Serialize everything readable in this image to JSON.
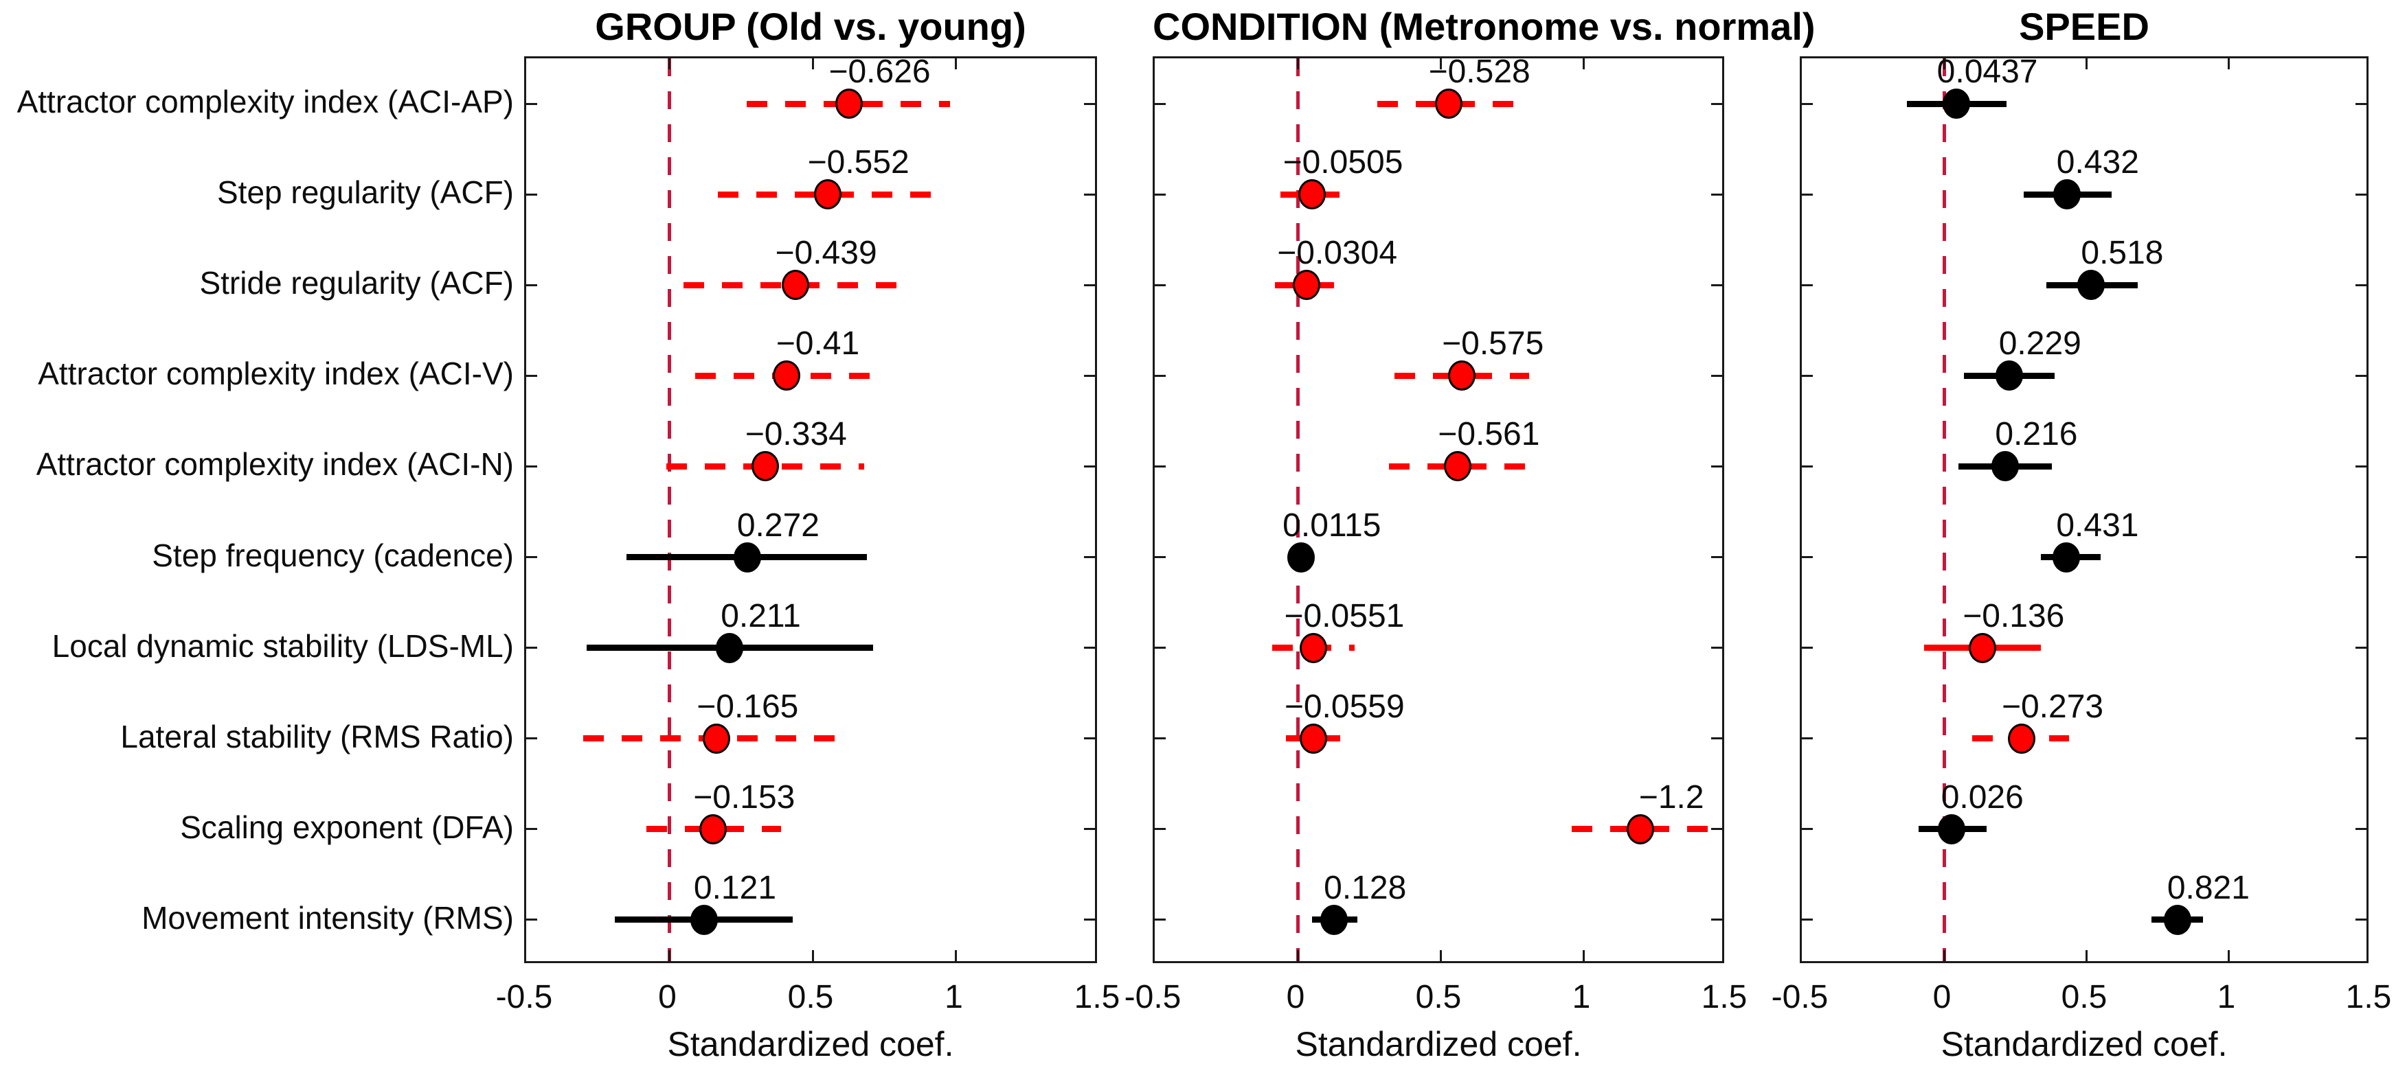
{
  "figure_title": "Standardized coefficients forest plots",
  "chart_data": {
    "type": "scatter",
    "subtype": "forest-dot-plot",
    "categories": [
      "Attractor complexity index (ACI-AP)",
      "Step regularity (ACF)",
      "Stride regularity (ACF)",
      "Attractor complexity index (ACI-V)",
      "Attractor complexity index (ACI-N)",
      "Step frequency (cadence)",
      "Local dynamic stability (LDS-ML)",
      "Lateral stability (RMS Ratio)",
      "Scaling exponent (DFA)",
      "Movement intensity (RMS)"
    ],
    "xlabel": "Standardized coef.",
    "xlim": [
      -0.5,
      1.5
    ],
    "xticks": [
      {
        "value": -0.5,
        "label": "-0.5"
      },
      {
        "value": 0,
        "label": "0"
      },
      {
        "value": 0.5,
        "label": "0.5"
      },
      {
        "value": 1,
        "label": "1"
      },
      {
        "value": 1.5,
        "label": "1.5"
      }
    ],
    "inner_xticks": [
      0,
      0.5,
      1
    ],
    "zero_reference_line": 0,
    "legend": "none",
    "grid": "off",
    "colors": {
      "red": "#ff0000",
      "black": "#000000",
      "zero_line": "#c5183c",
      "axis": "#1a1a1a",
      "text": "#0d0d0d"
    },
    "panels": [
      {
        "title": "GROUP (Old vs. young)",
        "points": [
          {
            "label": "−0.626",
            "x": 0.626,
            "ci": [
              0.27,
              0.98
            ],
            "line": "dashed",
            "color": "red"
          },
          {
            "label": "−0.552",
            "x": 0.552,
            "ci": [
              0.17,
              0.94
            ],
            "line": "dashed",
            "color": "red"
          },
          {
            "label": "−0.439",
            "x": 0.439,
            "ci": [
              0.05,
              0.83
            ],
            "line": "dashed",
            "color": "red"
          },
          {
            "label": "−0.41",
            "x": 0.41,
            "ci": [
              0.09,
              0.73
            ],
            "line": "dashed",
            "color": "red"
          },
          {
            "label": "−0.334",
            "x": 0.334,
            "ci": [
              -0.01,
              0.68
            ],
            "line": "dashed",
            "color": "red"
          },
          {
            "label": "0.272",
            "x": 0.272,
            "ci": [
              -0.15,
              0.69
            ],
            "line": "solid",
            "color": "black"
          },
          {
            "label": "0.211",
            "x": 0.211,
            "ci": [
              -0.29,
              0.71
            ],
            "line": "solid",
            "color": "black"
          },
          {
            "label": "−0.165",
            "x": 0.165,
            "ci": [
              -0.3,
              0.59
            ],
            "line": "dashed",
            "color": "red"
          },
          {
            "label": "−0.153",
            "x": 0.153,
            "ci": [
              -0.08,
              0.39
            ],
            "line": "dashed",
            "color": "red"
          },
          {
            "label": "0.121",
            "x": 0.121,
            "ci": [
              -0.19,
              0.43
            ],
            "line": "solid",
            "color": "black"
          }
        ]
      },
      {
        "title": "CONDITION (Metronome vs. normal)",
        "points": [
          {
            "label": "−0.528",
            "x": 0.528,
            "ci": [
              0.28,
              0.79
            ],
            "line": "dashed",
            "color": "red"
          },
          {
            "label": "−0.0505",
            "x": 0.0505,
            "ci": [
              -0.06,
              0.16
            ],
            "line": "dashed",
            "color": "red"
          },
          {
            "label": "−0.0304",
            "x": 0.0304,
            "ci": [
              -0.08,
              0.14
            ],
            "line": "dashed",
            "color": "red"
          },
          {
            "label": "−0.575",
            "x": 0.575,
            "ci": [
              0.34,
              0.81
            ],
            "line": "dashed",
            "color": "red"
          },
          {
            "label": "−0.561",
            "x": 0.561,
            "ci": [
              0.32,
              0.8
            ],
            "line": "dashed",
            "color": "red"
          },
          {
            "label": "0.0115",
            "x": 0.0115,
            "ci": [
              -0.02,
              0.05
            ],
            "line": "solid",
            "color": "black"
          },
          {
            "label": "−0.0551",
            "x": 0.0551,
            "ci": [
              -0.09,
              0.2
            ],
            "line": "dashed",
            "color": "red"
          },
          {
            "label": "−0.0559",
            "x": 0.0559,
            "ci": [
              -0.04,
              0.15
            ],
            "line": "dashed",
            "color": "red"
          },
          {
            "label": "−1.2",
            "x": 1.2,
            "ci": [
              0.96,
              1.44
            ],
            "line": "dashed",
            "color": "red"
          },
          {
            "label": "0.128",
            "x": 0.128,
            "ci": [
              0.05,
              0.21
            ],
            "line": "solid",
            "color": "black"
          }
        ]
      },
      {
        "title": "SPEED",
        "points": [
          {
            "label": "0.0437",
            "x": 0.0437,
            "ci": [
              -0.13,
              0.22
            ],
            "line": "solid",
            "color": "black"
          },
          {
            "label": "0.432",
            "x": 0.432,
            "ci": [
              0.28,
              0.59
            ],
            "line": "solid",
            "color": "black"
          },
          {
            "label": "0.518",
            "x": 0.518,
            "ci": [
              0.36,
              0.68
            ],
            "line": "solid",
            "color": "black"
          },
          {
            "label": "0.229",
            "x": 0.229,
            "ci": [
              0.07,
              0.39
            ],
            "line": "solid",
            "color": "black"
          },
          {
            "label": "0.216",
            "x": 0.216,
            "ci": [
              0.05,
              0.38
            ],
            "line": "solid",
            "color": "black"
          },
          {
            "label": "0.431",
            "x": 0.431,
            "ci": [
              0.34,
              0.55
            ],
            "line": "solid",
            "color": "black"
          },
          {
            "label": "−0.136",
            "x": 0.136,
            "ci": [
              -0.07,
              0.34
            ],
            "line": "solid",
            "color": "red"
          },
          {
            "label": "−0.273",
            "x": 0.273,
            "ci": [
              0.1,
              0.44
            ],
            "line": "dashed",
            "color": "red"
          },
          {
            "label": "0.026",
            "x": 0.026,
            "ci": [
              -0.09,
              0.15
            ],
            "line": "solid",
            "color": "black"
          },
          {
            "label": "0.821",
            "x": 0.821,
            "ci": [
              0.73,
              0.91
            ],
            "line": "solid",
            "color": "black"
          }
        ]
      }
    ]
  }
}
